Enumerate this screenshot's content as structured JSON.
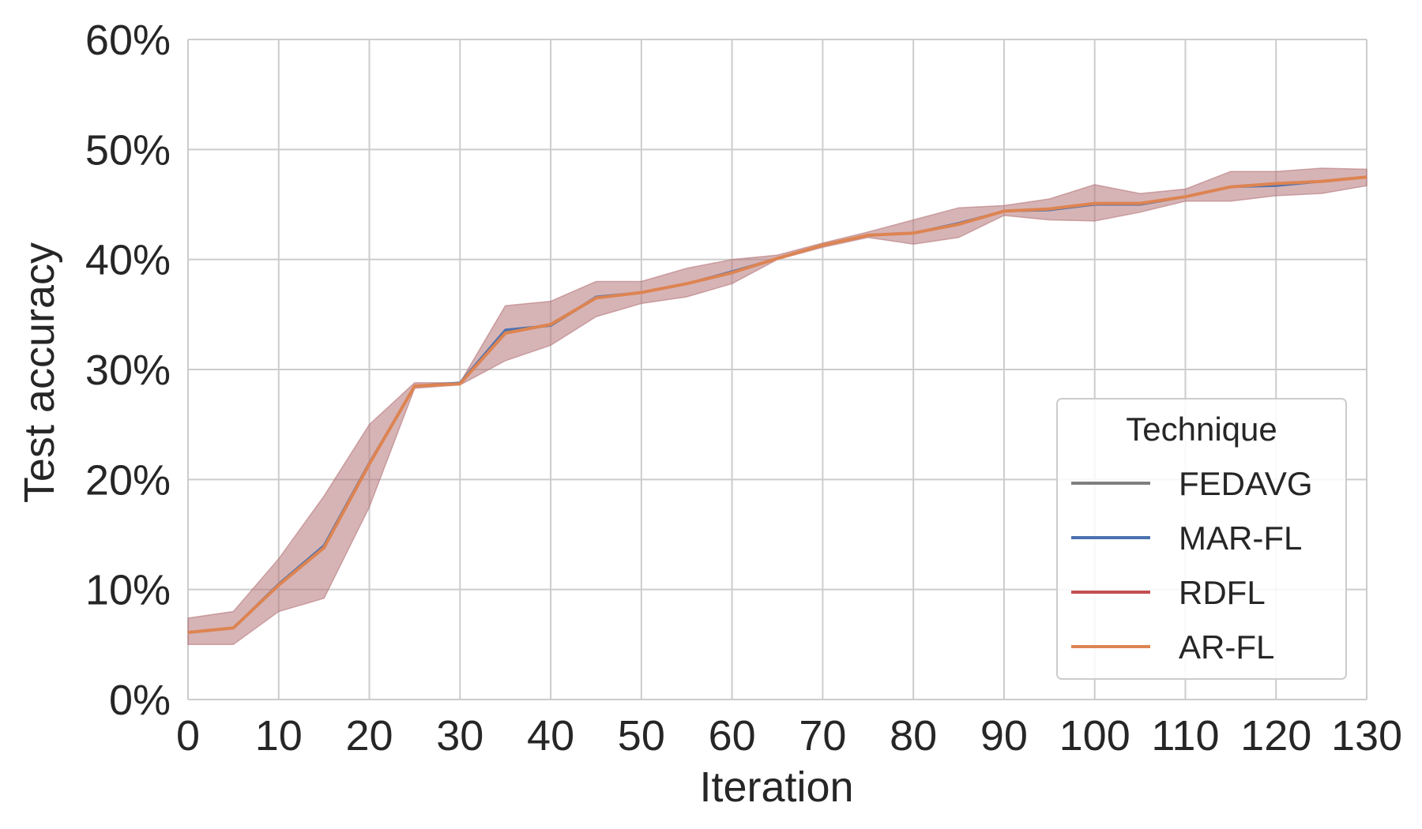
{
  "chart_data": {
    "type": "line",
    "xlabel": "Iteration",
    "ylabel": "Test accuracy",
    "xlim": [
      0,
      130
    ],
    "ylim": [
      0,
      60
    ],
    "x_ticks": [
      0,
      10,
      20,
      30,
      40,
      50,
      60,
      70,
      80,
      90,
      100,
      110,
      120,
      130
    ],
    "x_tick_labels": [
      "0",
      "10",
      "20",
      "30",
      "40",
      "50",
      "60",
      "70",
      "80",
      "90",
      "100",
      "110",
      "120",
      "130"
    ],
    "y_ticks": [
      0,
      10,
      20,
      30,
      40,
      50,
      60
    ],
    "y_tick_labels": [
      "0%",
      "10%",
      "20%",
      "30%",
      "40%",
      "50%",
      "60%"
    ],
    "grid": true,
    "legend": {
      "title": "Technique",
      "position": "lower-right"
    },
    "x": [
      0,
      5,
      10,
      15,
      20,
      25,
      30,
      35,
      40,
      45,
      50,
      55,
      60,
      65,
      70,
      75,
      80,
      85,
      90,
      95,
      100,
      105,
      110,
      115,
      120,
      125,
      130
    ],
    "band": {
      "color": "#b5777a",
      "lower": [
        5.0,
        5.0,
        8.0,
        9.2,
        17.5,
        28.3,
        28.6,
        30.8,
        32.2,
        34.8,
        36.0,
        36.6,
        37.8,
        40.0,
        41.1,
        42.0,
        41.4,
        42.0,
        44.0,
        43.6,
        43.5,
        44.3,
        45.3,
        45.3,
        45.8,
        46.0,
        46.7
      ],
      "upper": [
        7.4,
        8.0,
        12.8,
        18.5,
        25.0,
        28.8,
        28.8,
        35.8,
        36.2,
        38.0,
        38.0,
        39.2,
        40.0,
        40.4,
        41.5,
        42.5,
        43.6,
        44.7,
        44.9,
        45.5,
        46.8,
        46.0,
        46.4,
        48.0,
        48.0,
        48.3,
        48.2
      ]
    },
    "series": [
      {
        "name": "FEDAVG",
        "color": "#7f7f7f",
        "width": 3,
        "values": [
          6.1,
          6.5,
          10.5,
          14.0,
          21.5,
          28.5,
          28.7,
          33.5,
          34.0,
          36.5,
          37.0,
          37.8,
          38.8,
          40.1,
          41.3,
          42.2,
          42.4,
          43.2,
          44.4,
          44.5,
          45.1,
          45.0,
          45.7,
          46.6,
          46.9,
          47.1,
          47.5
        ]
      },
      {
        "name": "MAR-FL",
        "color": "#4c72b0",
        "width": 3,
        "values": [
          6.1,
          6.5,
          10.5,
          14.0,
          21.5,
          28.5,
          28.8,
          33.6,
          34.0,
          36.6,
          37.0,
          37.8,
          38.9,
          40.1,
          41.3,
          42.2,
          42.4,
          43.3,
          44.4,
          44.5,
          45.0,
          45.0,
          45.7,
          46.6,
          46.7,
          47.1,
          47.5
        ]
      },
      {
        "name": "RDFL",
        "color": "#c44e52",
        "width": 3,
        "values": [
          6.1,
          6.5,
          10.4,
          13.8,
          21.4,
          28.5,
          28.7,
          33.3,
          34.1,
          36.5,
          37.0,
          37.8,
          38.8,
          40.1,
          41.3,
          42.2,
          42.4,
          43.2,
          44.4,
          44.6,
          45.1,
          45.1,
          45.7,
          46.6,
          46.9,
          47.1,
          47.5
        ]
      },
      {
        "name": "AR-FL",
        "color": "#dd8452",
        "width": 4,
        "values": [
          6.1,
          6.5,
          10.4,
          13.8,
          21.4,
          28.5,
          28.7,
          33.3,
          34.1,
          36.5,
          37.0,
          37.8,
          38.8,
          40.1,
          41.3,
          42.2,
          42.4,
          43.2,
          44.4,
          44.6,
          45.1,
          45.1,
          45.7,
          46.6,
          46.9,
          47.1,
          47.5
        ]
      }
    ],
    "colors": {
      "grid": "#cccccc",
      "background": "#ffffff",
      "legend_border": "#cccccc"
    }
  }
}
